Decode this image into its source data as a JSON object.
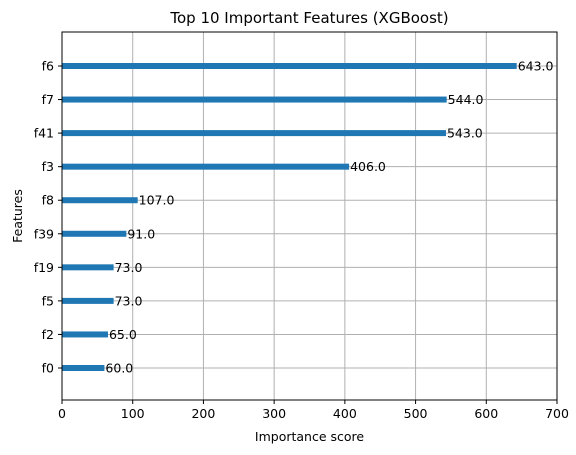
{
  "chart_data": {
    "type": "bar",
    "orientation": "horizontal",
    "title": "Top 10 Important Features (XGBoost)",
    "xlabel": "Importance score",
    "ylabel": "Features",
    "categories": [
      "f6",
      "f7",
      "f41",
      "f3",
      "f8",
      "f39",
      "f19",
      "f5",
      "f2",
      "f0"
    ],
    "values": [
      643.0,
      544.0,
      543.0,
      406.0,
      107.0,
      91.0,
      73.0,
      73.0,
      65.0,
      60.0
    ],
    "value_labels": [
      "643.0",
      "544.0",
      "543.0",
      "406.0",
      "107.0",
      "91.0",
      "73.0",
      "73.0",
      "65.0",
      "60.0"
    ],
    "xlim": [
      0,
      700
    ],
    "xticks": [
      0,
      100,
      200,
      300,
      400,
      500,
      600,
      700
    ],
    "grid": true,
    "bar_color": "#1f77b4",
    "grid_color": "#b0b0b0"
  }
}
